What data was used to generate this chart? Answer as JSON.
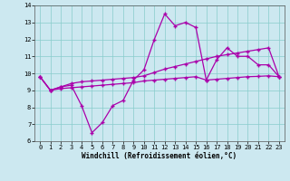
{
  "xlabel": "Windchill (Refroidissement éolien,°C)",
  "bg_color": "#cce8f0",
  "line_color": "#aa00aa",
  "xlim": [
    -0.5,
    23.5
  ],
  "ylim": [
    6,
    14
  ],
  "xticks": [
    0,
    1,
    2,
    3,
    4,
    5,
    6,
    7,
    8,
    9,
    10,
    11,
    12,
    13,
    14,
    15,
    16,
    17,
    18,
    19,
    20,
    21,
    22,
    23
  ],
  "yticks": [
    6,
    7,
    8,
    9,
    10,
    11,
    12,
    13,
    14
  ],
  "line1_x": [
    0,
    1,
    2,
    3,
    4,
    5,
    6,
    7,
    8,
    9,
    10,
    11,
    12,
    13,
    14,
    15,
    16,
    17,
    18,
    19,
    20,
    21,
    22,
    23
  ],
  "line1_y": [
    9.8,
    9.0,
    9.2,
    9.3,
    8.1,
    6.5,
    7.1,
    8.1,
    8.4,
    9.6,
    10.2,
    12.0,
    13.5,
    12.8,
    13.0,
    12.7,
    9.6,
    10.8,
    11.5,
    11.0,
    11.0,
    10.5,
    10.5,
    9.8
  ],
  "line2_x": [
    0,
    1,
    2,
    3,
    4,
    5,
    6,
    7,
    8,
    9,
    10,
    11,
    12,
    13,
    14,
    15,
    16,
    17,
    18,
    19,
    20,
    21,
    22,
    23
  ],
  "line2_y": [
    9.8,
    9.0,
    9.2,
    9.4,
    9.5,
    9.55,
    9.6,
    9.65,
    9.7,
    9.75,
    9.85,
    10.05,
    10.25,
    10.4,
    10.55,
    10.7,
    10.85,
    11.0,
    11.1,
    11.2,
    11.3,
    11.4,
    11.5,
    9.8
  ],
  "line3_x": [
    0,
    1,
    2,
    3,
    4,
    5,
    6,
    7,
    8,
    9,
    10,
    11,
    12,
    13,
    14,
    15,
    16,
    17,
    18,
    19,
    20,
    21,
    22,
    23
  ],
  "line3_y": [
    9.8,
    9.0,
    9.1,
    9.15,
    9.2,
    9.25,
    9.3,
    9.35,
    9.4,
    9.45,
    9.55,
    9.6,
    9.65,
    9.7,
    9.75,
    9.8,
    9.6,
    9.65,
    9.7,
    9.75,
    9.8,
    9.82,
    9.85,
    9.8
  ]
}
